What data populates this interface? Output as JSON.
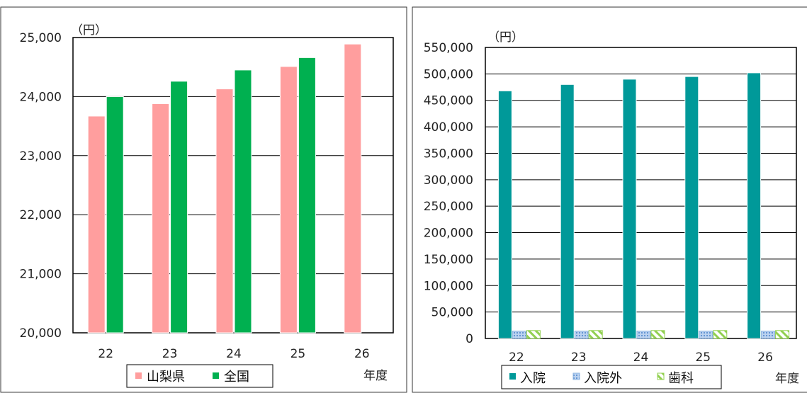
{
  "chart_data": [
    {
      "type": "bar",
      "title": "",
      "unit_label": "（円）",
      "xlabel": "年度",
      "ylabel": "",
      "categories": [
        "22",
        "23",
        "24",
        "25",
        "26"
      ],
      "ylim": [
        20000,
        25000
      ],
      "yticks": [
        20000,
        21000,
        22000,
        23000,
        24000,
        25000
      ],
      "ytick_labels": [
        "20,000",
        "21,000",
        "22,000",
        "23,000",
        "24,000",
        "25,000"
      ],
      "grid": true,
      "legend_position": "bottom",
      "series": [
        {
          "name": "山梨県",
          "color": "#ff9e9e",
          "values": [
            23670,
            23880,
            24130,
            24510,
            24890
          ]
        },
        {
          "name": "全国",
          "color": "#00b050",
          "values": [
            24000,
            24260,
            24450,
            24660,
            null
          ]
        }
      ]
    },
    {
      "type": "bar",
      "title": "",
      "unit_label": "（円）",
      "xlabel": "年度",
      "ylabel": "",
      "categories": [
        "22",
        "23",
        "24",
        "25",
        "26"
      ],
      "ylim": [
        0,
        550000
      ],
      "yticks": [
        0,
        50000,
        100000,
        150000,
        200000,
        250000,
        300000,
        350000,
        400000,
        450000,
        500000,
        550000
      ],
      "ytick_labels": [
        "0",
        "50,000",
        "100,000",
        "150,000",
        "200,000",
        "250,000",
        "300,000",
        "350,000",
        "400,000",
        "450,000",
        "500,000",
        "550,000"
      ],
      "grid": true,
      "legend_position": "bottom",
      "series": [
        {
          "name": "入院",
          "color": "#009999",
          "pattern": "solid",
          "values": [
            468000,
            480000,
            490000,
            495000,
            502000
          ]
        },
        {
          "name": "入院外",
          "color": "#8db4e2",
          "pattern": "dots",
          "values": [
            14000,
            14000,
            14000,
            14000,
            14000
          ]
        },
        {
          "name": "歯科",
          "color": "#92d050",
          "pattern": "hatch",
          "values": [
            15000,
            15000,
            15000,
            15000,
            15000
          ]
        }
      ]
    }
  ]
}
